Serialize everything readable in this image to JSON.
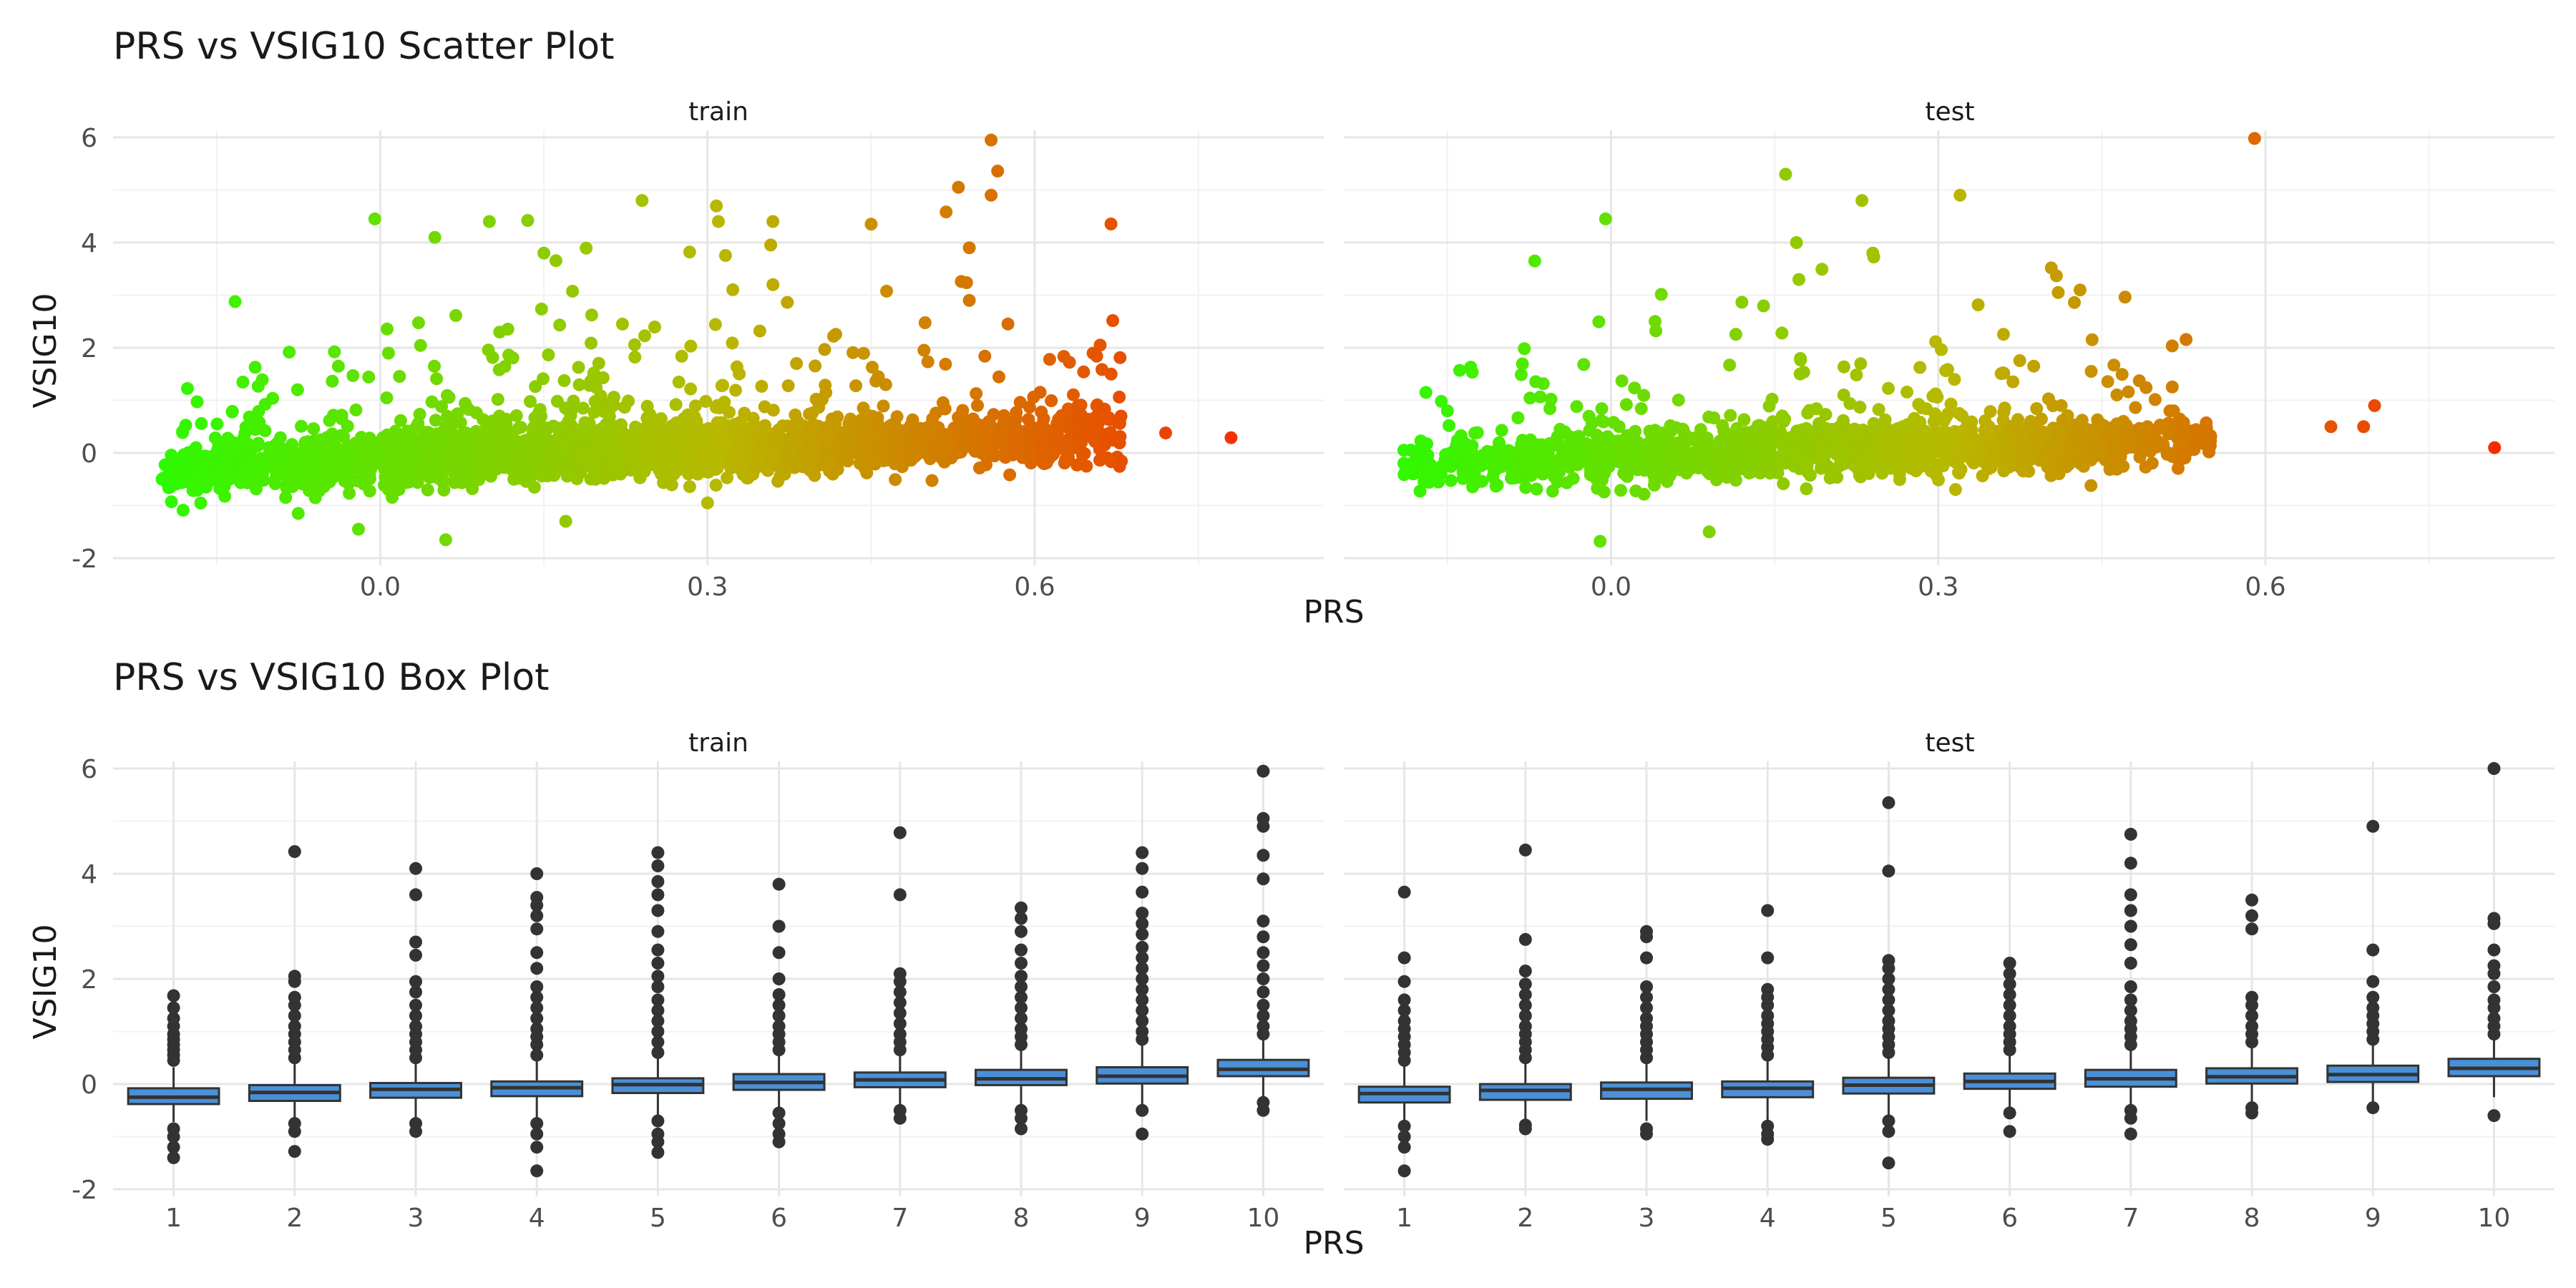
{
  "chart_data": [
    {
      "type": "scatter",
      "title": "PRS vs VSIG10 Scatter Plot",
      "xlabel": "PRS",
      "ylabel": "VSIG10",
      "facets": [
        "train",
        "test"
      ],
      "ylim": [
        -2,
        6
      ],
      "y_ticks": [
        "-2",
        "0",
        "2",
        "4",
        "6"
      ],
      "x_ticks": [
        "0.0",
        "0.3",
        "0.6"
      ],
      "x_tick_values": [
        0.0,
        0.3,
        0.6
      ],
      "xlim": [
        -0.245,
        0.865
      ],
      "color_scale": {
        "low": "#22ff00",
        "mid": "#b8b800",
        "high": "#ff1a00"
      },
      "grid": "on",
      "legend": "none",
      "series": [
        {
          "facet": "train",
          "trend": {
            "x": [
              -0.2,
              -0.1,
              0.0,
              0.1,
              0.2,
              0.3,
              0.4,
              0.5,
              0.6,
              0.68
            ],
            "y": [
              -0.38,
              -0.25,
              -0.12,
              -0.02,
              0.05,
              0.1,
              0.15,
              0.22,
              0.3,
              0.35
            ]
          },
          "notable_points": [
            {
              "x": 0.72,
              "y": 0.38
            },
            {
              "x": 0.78,
              "y": 0.29
            },
            {
              "x": 0.56,
              "y": 5.95
            },
            {
              "x": 0.53,
              "y": 5.05
            },
            {
              "x": 0.56,
              "y": 4.9
            },
            {
              "x": 0.54,
              "y": 3.9
            },
            {
              "x": 0.45,
              "y": 4.35
            },
            {
              "x": 0.24,
              "y": 4.8
            },
            {
              "x": 0.31,
              "y": 4.4
            },
            {
              "x": 0.36,
              "y": 4.4
            },
            {
              "x": -0.005,
              "y": 4.45
            },
            {
              "x": 0.1,
              "y": 4.4
            },
            {
              "x": 0.15,
              "y": 3.8
            },
            {
              "x": 0.05,
              "y": 4.1
            },
            {
              "x": 0.36,
              "y": 3.2
            },
            {
              "x": 0.54,
              "y": 2.9
            },
            {
              "x": 0.66,
              "y": 2.05
            },
            {
              "x": 0.67,
              "y": 1.5
            },
            {
              "x": 0.06,
              "y": -1.65
            },
            {
              "x": -0.02,
              "y": -1.45
            },
            {
              "x": 0.17,
              "y": -1.3
            },
            {
              "x": 0.3,
              "y": -0.95
            },
            {
              "x": -0.2,
              "y": -0.5
            }
          ]
        },
        {
          "facet": "test",
          "trend": {
            "x": [
              -0.19,
              -0.1,
              0.0,
              0.1,
              0.2,
              0.3,
              0.4,
              0.5,
              0.55
            ],
            "y": [
              -0.2,
              -0.15,
              -0.08,
              -0.02,
              0.03,
              0.08,
              0.14,
              0.2,
              0.25
            ]
          },
          "notable_points": [
            {
              "x": 0.81,
              "y": 0.1
            },
            {
              "x": 0.59,
              "y": 5.98
            },
            {
              "x": 0.16,
              "y": 5.3
            },
            {
              "x": 0.32,
              "y": 4.9
            },
            {
              "x": 0.23,
              "y": 4.8
            },
            {
              "x": -0.005,
              "y": 4.45
            },
            {
              "x": 0.17,
              "y": 4.0
            },
            {
              "x": -0.07,
              "y": 3.65
            },
            {
              "x": 0.24,
              "y": 3.8
            },
            {
              "x": 0.7,
              "y": 0.9
            },
            {
              "x": 0.69,
              "y": 0.5
            },
            {
              "x": 0.66,
              "y": 0.5
            },
            {
              "x": -0.19,
              "y": 0.05
            },
            {
              "x": -0.15,
              "y": 0.8
            },
            {
              "x": -0.01,
              "y": -1.68
            },
            {
              "x": 0.09,
              "y": -1.5
            },
            {
              "x": 0.43,
              "y": 3.1
            },
            {
              "x": 0.41,
              "y": 3.05
            },
            {
              "x": 0.44,
              "y": -0.62
            }
          ]
        }
      ]
    },
    {
      "type": "box",
      "title": "PRS vs VSIG10 Box Plot",
      "xlabel": "PRS",
      "ylabel": "VSIG10",
      "facets": [
        "train",
        "test"
      ],
      "ylim": [
        -2,
        6
      ],
      "y_ticks": [
        "-2",
        "0",
        "2",
        "4",
        "6"
      ],
      "categories": [
        "1",
        "2",
        "3",
        "4",
        "5",
        "6",
        "7",
        "8",
        "9",
        "10"
      ],
      "box_color": "#4a90d9",
      "grid": "on",
      "legend": "none",
      "series": [
        {
          "facet": "train",
          "boxes": [
            {
              "q1": -0.38,
              "median": -0.25,
              "q3": -0.08,
              "lw": -0.72,
              "uw": 0.32,
              "out": [
                0.45,
                0.55,
                0.65,
                0.75,
                0.85,
                0.95,
                1.1,
                1.25,
                1.45,
                1.68,
                -0.85,
                -1.0,
                -1.2,
                -1.4
              ]
            },
            {
              "q1": -0.32,
              "median": -0.16,
              "q3": -0.02,
              "lw": -0.72,
              "uw": 0.45,
              "out": [
                0.5,
                0.65,
                0.8,
                0.95,
                1.1,
                1.3,
                1.5,
                1.65,
                1.95,
                2.05,
                -0.75,
                -0.9,
                -1.28,
                4.42
              ]
            },
            {
              "q1": -0.26,
              "median": -0.1,
              "q3": 0.02,
              "lw": -0.7,
              "uw": 0.45,
              "out": [
                0.5,
                0.65,
                0.8,
                0.95,
                1.1,
                1.3,
                1.5,
                1.75,
                1.95,
                2.45,
                2.7,
                3.6,
                4.1,
                -0.75,
                -0.9
              ]
            },
            {
              "q1": -0.23,
              "median": -0.07,
              "q3": 0.05,
              "lw": -0.68,
              "uw": 0.5,
              "out": [
                0.55,
                0.75,
                0.9,
                1.05,
                1.25,
                1.45,
                1.65,
                1.85,
                2.2,
                2.5,
                2.95,
                3.2,
                3.4,
                3.55,
                4.0,
                -0.75,
                -0.95,
                -1.2,
                -1.65
              ]
            },
            {
              "q1": -0.17,
              "median": -0.01,
              "q3": 0.11,
              "lw": -0.6,
              "uw": 0.52,
              "out": [
                0.6,
                0.8,
                1.0,
                1.2,
                1.4,
                1.6,
                1.85,
                2.05,
                2.3,
                2.55,
                2.9,
                3.3,
                3.6,
                3.85,
                4.15,
                4.4,
                -0.7,
                -0.95,
                -1.1,
                -1.3
              ]
            },
            {
              "q1": -0.11,
              "median": 0.03,
              "q3": 0.19,
              "lw": -0.5,
              "uw": 0.6,
              "out": [
                0.65,
                0.8,
                0.95,
                1.1,
                1.3,
                1.5,
                1.7,
                2.0,
                2.5,
                3.0,
                3.8,
                -0.55,
                -0.75,
                -0.95,
                -1.1
              ]
            },
            {
              "q1": -0.06,
              "median": 0.08,
              "q3": 0.22,
              "lw": -0.45,
              "uw": 0.6,
              "out": [
                0.65,
                0.8,
                0.95,
                1.15,
                1.35,
                1.55,
                1.75,
                1.95,
                2.1,
                3.6,
                4.78,
                -0.5,
                -0.65
              ]
            },
            {
              "q1": -0.02,
              "median": 0.1,
              "q3": 0.27,
              "lw": -0.45,
              "uw": 0.7,
              "out": [
                0.75,
                0.9,
                1.05,
                1.25,
                1.45,
                1.65,
                1.85,
                2.05,
                2.3,
                2.55,
                2.9,
                3.15,
                3.35,
                -0.5,
                -0.65,
                -0.85
              ]
            },
            {
              "q1": 0.01,
              "median": 0.15,
              "q3": 0.32,
              "lw": -0.45,
              "uw": 0.77,
              "out": [
                0.85,
                1.0,
                1.2,
                1.4,
                1.6,
                1.8,
                2.0,
                2.2,
                2.4,
                2.6,
                2.85,
                3.05,
                3.25,
                3.65,
                4.1,
                4.4,
                -0.5,
                -0.95
              ]
            },
            {
              "q1": 0.15,
              "median": 0.28,
              "q3": 0.46,
              "lw": -0.3,
              "uw": 0.9,
              "out": [
                0.95,
                1.1,
                1.3,
                1.5,
                1.75,
                2.0,
                2.25,
                2.5,
                2.8,
                3.1,
                3.9,
                4.35,
                4.9,
                5.05,
                5.95,
                -0.35,
                -0.5
              ]
            }
          ]
        },
        {
          "facet": "test",
          "boxes": [
            {
              "q1": -0.35,
              "median": -0.18,
              "q3": -0.05,
              "lw": -0.72,
              "uw": 0.35,
              "out": [
                0.45,
                0.6,
                0.75,
                0.9,
                1.05,
                1.2,
                1.4,
                1.6,
                1.95,
                2.4,
                3.65,
                -0.8,
                -1.0,
                -1.2,
                -1.65
              ]
            },
            {
              "q1": -0.3,
              "median": -0.12,
              "q3": 0.0,
              "lw": -0.72,
              "uw": 0.42,
              "out": [
                0.5,
                0.65,
                0.8,
                0.95,
                1.1,
                1.3,
                1.5,
                1.7,
                1.9,
                2.15,
                2.75,
                4.45,
                -0.78,
                -0.85
              ]
            },
            {
              "q1": -0.28,
              "median": -0.1,
              "q3": 0.03,
              "lw": -0.7,
              "uw": 0.45,
              "out": [
                0.5,
                0.65,
                0.8,
                0.95,
                1.1,
                1.25,
                1.45,
                1.65,
                1.85,
                2.4,
                2.8,
                2.9,
                -0.85,
                -0.95
              ]
            },
            {
              "q1": -0.25,
              "median": -0.08,
              "q3": 0.05,
              "lw": -0.68,
              "uw": 0.48,
              "out": [
                0.55,
                0.7,
                0.85,
                1.0,
                1.15,
                1.3,
                1.5,
                1.65,
                1.8,
                2.4,
                3.3,
                -0.8,
                -0.95,
                -1.05
              ]
            },
            {
              "q1": -0.18,
              "median": -0.02,
              "q3": 0.12,
              "lw": -0.6,
              "uw": 0.55,
              "out": [
                0.6,
                0.75,
                0.9,
                1.05,
                1.2,
                1.4,
                1.6,
                1.8,
                2.0,
                2.2,
                2.35,
                4.05,
                5.35,
                -0.7,
                -0.9,
                -1.5
              ]
            },
            {
              "q1": -0.09,
              "median": 0.05,
              "q3": 0.2,
              "lw": -0.45,
              "uw": 0.6,
              "out": [
                0.65,
                0.8,
                0.95,
                1.1,
                1.3,
                1.5,
                1.7,
                1.9,
                2.1,
                2.3,
                -0.55,
                -0.9
              ]
            },
            {
              "q1": -0.05,
              "median": 0.1,
              "q3": 0.27,
              "lw": -0.45,
              "uw": 0.68,
              "out": [
                0.75,
                0.9,
                1.05,
                1.2,
                1.4,
                1.6,
                1.85,
                2.3,
                2.65,
                3.0,
                3.3,
                3.6,
                4.2,
                4.75,
                -0.5,
                -0.65,
                -0.95
              ]
            },
            {
              "q1": 0.01,
              "median": 0.14,
              "q3": 0.3,
              "lw": -0.4,
              "uw": 0.7,
              "out": [
                0.8,
                0.95,
                1.1,
                1.3,
                1.5,
                1.65,
                2.95,
                3.2,
                3.5,
                -0.45,
                -0.55
              ]
            },
            {
              "q1": 0.04,
              "median": 0.18,
              "q3": 0.35,
              "lw": -0.35,
              "uw": 0.75,
              "out": [
                0.85,
                1.0,
                1.15,
                1.3,
                1.45,
                1.65,
                1.95,
                2.55,
                4.9,
                -0.45
              ]
            },
            {
              "q1": 0.15,
              "median": 0.3,
              "q3": 0.48,
              "lw": -0.25,
              "uw": 0.88,
              "out": [
                0.95,
                1.1,
                1.25,
                1.45,
                1.6,
                1.85,
                2.1,
                2.25,
                2.55,
                3.05,
                3.15,
                6.0,
                -0.6
              ]
            }
          ]
        }
      ]
    }
  ]
}
